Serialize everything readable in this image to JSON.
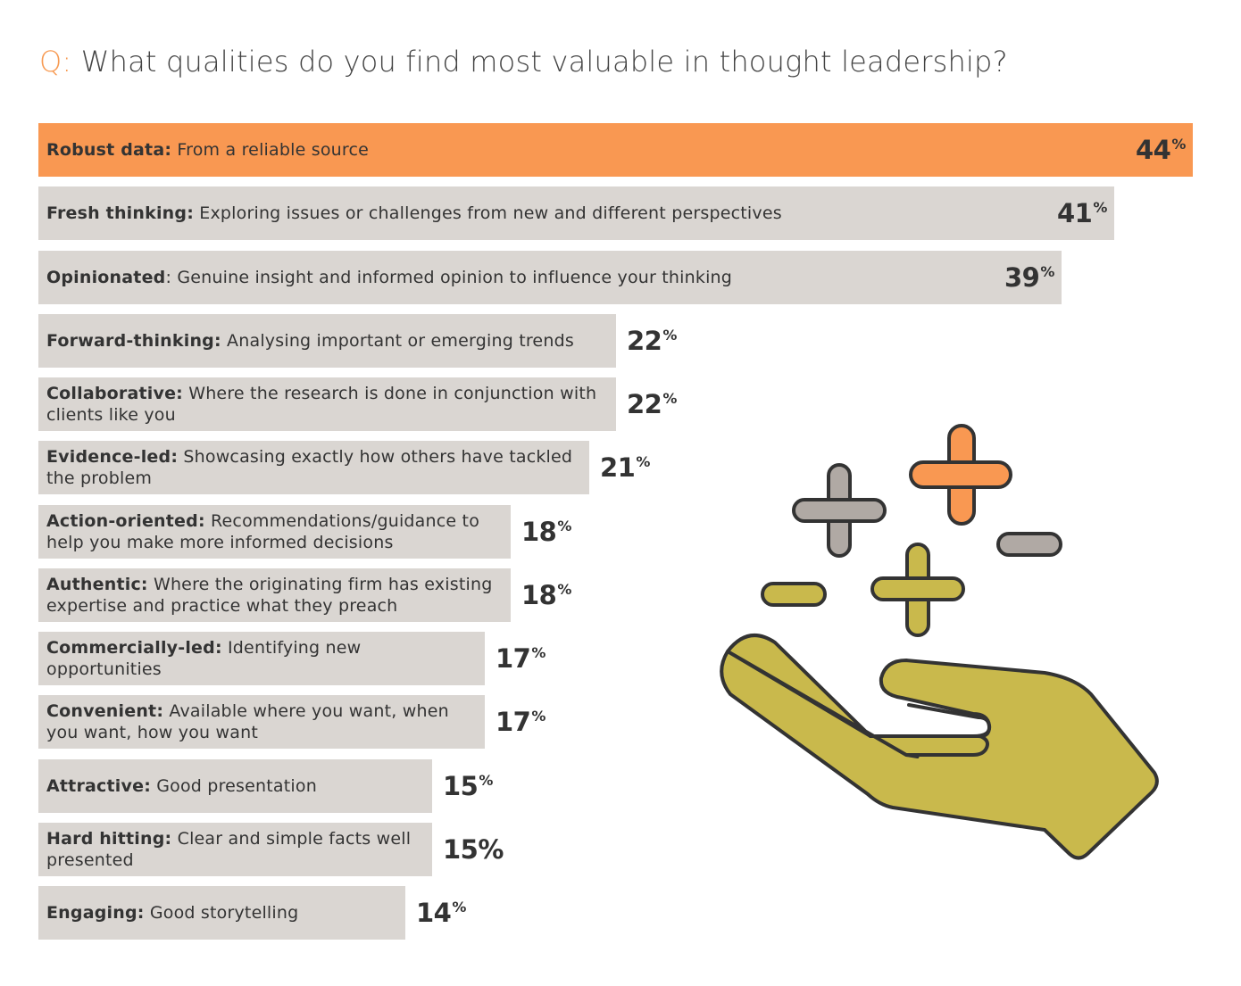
{
  "title": {
    "prefix": "Q:",
    "text": "What qualities do you find most valuable in thought leadership?"
  },
  "colors": {
    "accent": "#f99852",
    "bar": "#dad6d2",
    "text": "#333333",
    "olive": "#c9b94c",
    "grey": "#b0a9a4"
  },
  "illustration": {
    "name": "hand-with-plus-minus-icons"
  },
  "chart_data": {
    "type": "bar",
    "orientation": "horizontal",
    "unit": "%",
    "categories": [
      {
        "bold": "Robust data:",
        "text": " From a reliable source",
        "value": 44,
        "highlight": true
      },
      {
        "bold": "Fresh thinking:",
        "text": " Exploring issues or challenges from new and different perspectives",
        "value": 41
      },
      {
        "bold": "Opinionated",
        "text": ": Genuine insight and informed opinion to influence your thinking",
        "value": 39
      },
      {
        "bold": "Forward-thinking:",
        "text": " Analysing important or emerging trends",
        "value": 22
      },
      {
        "bold": "Collaborative:",
        "text": " Where the research is done in conjunction with clients like you",
        "value": 22
      },
      {
        "bold": "Evidence-led:",
        "text": " Showcasing exactly how others have tackled the problem",
        "value": 21
      },
      {
        "bold": "Action-oriented:",
        "text": " Recommendations/guidance to help you make more informed decisions",
        "value": 18
      },
      {
        "bold": "Authentic:",
        "text": " Where the originating firm has existing expertise  and practice what they preach",
        "value": 18
      },
      {
        "bold": "Commercially-led:",
        "text": " Identifying new opportunities",
        "value": 17
      },
      {
        "bold": "Convenient:",
        "text": " Available where you want, when you want, how you want",
        "value": 17
      },
      {
        "bold": "Attractive:",
        "text": " Good presentation",
        "value": 15
      },
      {
        "bold": "Hard hitting:",
        "text": " Clear and simple facts well presented",
        "value": 15,
        "full_size_symbol": true
      },
      {
        "bold": "Engaging:",
        "text": " Good storytelling",
        "value": 14
      }
    ],
    "xlim": [
      0,
      44
    ]
  }
}
